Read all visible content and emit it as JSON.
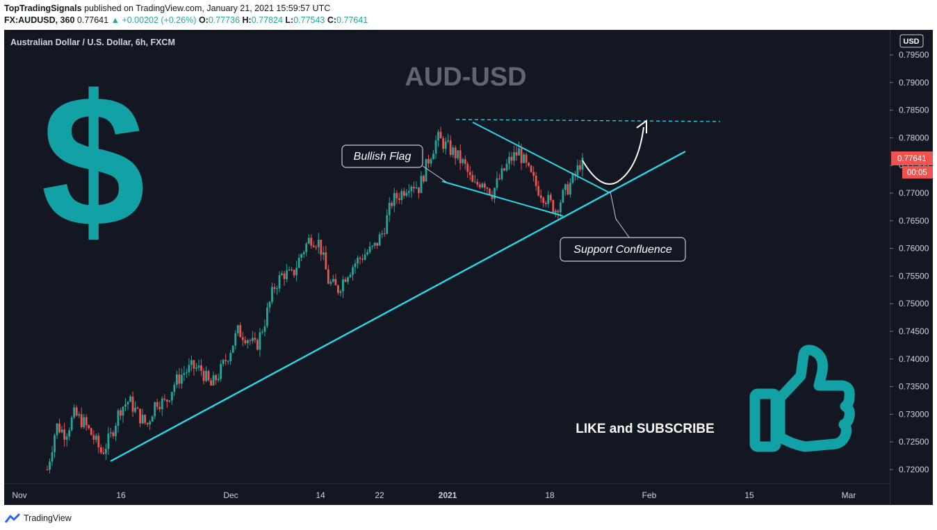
{
  "header": {
    "publisher": "TopTradingSignals",
    "published_text": "published on TradingView.com, January 21, 2021 15:59:57 UTC",
    "symbol": "FX:AUDUSD, 360",
    "last": "0.77641",
    "arrow": "▲",
    "change": "+0.00202 (+0.26%)",
    "o_label": "O:",
    "o_value": "0.77736",
    "h_label": "H:",
    "h_value": "0.77824",
    "l_label": "L:",
    "l_value": "0.77543",
    "c_label": "C:",
    "c_value": "0.77641"
  },
  "chart_title": "Australian Dollar / U.S. Dollar, 6h, FXCM",
  "watermark": "AUD-USD",
  "currency_badge": "USD",
  "price_label": "0.77641",
  "countdown_label": "00:05",
  "annotations": {
    "bullish_flag": "Bullish Flag",
    "support_confluence": "Support Confluence",
    "like_subscribe": "LIKE and SUBSCRIBE",
    "dollar_symbol": "$"
  },
  "footer": {
    "brand": "TradingView"
  },
  "colors": {
    "background": "#131722",
    "up": "#26a69a",
    "down": "#ef5350",
    "trendline": "#27d9eb",
    "icon_teal": "#12a2a6",
    "watermark": "#5f6573"
  },
  "icons": [
    "dollar-icon",
    "thumbs-up-icon",
    "tradingview-logo-icon"
  ],
  "chart_data": {
    "type": "candlestick",
    "title": "Australian Dollar / U.S. Dollar, 6h, FXCM",
    "timeframe": "6h",
    "y_axis": {
      "range": [
        0.7175,
        0.798
      ],
      "ticks": [
        "0.79500",
        "0.79000",
        "0.78500",
        "0.78000",
        "0.77500",
        "0.77000",
        "0.76500",
        "0.76000",
        "0.75500",
        "0.75000",
        "0.74500",
        "0.74000",
        "0.73500",
        "0.73000",
        "0.72500",
        "0.72000"
      ]
    },
    "x_axis": {
      "ticks": [
        "Nov",
        "16",
        "Dec",
        "14",
        "22",
        "2021",
        "18",
        "Feb",
        "15",
        "Mar"
      ]
    },
    "close_path": [
      [
        "Nov 05",
        0.72
      ],
      [
        "Nov 06",
        0.728
      ],
      [
        "Nov 08",
        0.7265
      ],
      [
        "Nov 09",
        0.73
      ],
      [
        "Nov 11",
        0.7285
      ],
      [
        "Nov 13",
        0.726
      ],
      [
        "Nov 15",
        0.723
      ],
      [
        "Nov 16",
        0.726
      ],
      [
        "Nov 18",
        0.731
      ],
      [
        "Nov 19",
        0.7325
      ],
      [
        "Nov 21",
        0.73
      ],
      [
        "Nov 23",
        0.728
      ],
      [
        "Nov 25",
        0.7325
      ],
      [
        "Nov 27",
        0.732
      ],
      [
        "Nov 29",
        0.7355
      ],
      [
        "Dec 01",
        0.7375
      ],
      [
        "Dec 02",
        0.7385
      ],
      [
        "Dec 04",
        0.738
      ],
      [
        "Dec 05",
        0.735
      ],
      [
        "Dec 07",
        0.7375
      ],
      [
        "Dec 08",
        0.741
      ],
      [
        "Dec 09",
        0.745
      ],
      [
        "Dec 11",
        0.744
      ],
      [
        "Dec 12",
        0.742
      ],
      [
        "Dec 13",
        0.747
      ],
      [
        "Dec 14",
        0.753
      ],
      [
        "Dec 15",
        0.7555
      ],
      [
        "Dec 16",
        0.755
      ],
      [
        "Dec 17",
        0.759
      ],
      [
        "Dec 18",
        0.762
      ],
      [
        "Dec 19",
        0.761
      ],
      [
        "Dec 21",
        0.754
      ],
      [
        "Dec 22",
        0.7525
      ],
      [
        "Dec 23",
        0.7555
      ],
      [
        "Dec 24",
        0.7575
      ],
      [
        "Dec 26",
        0.759
      ],
      [
        "Dec 28",
        0.76
      ],
      [
        "Dec 30",
        0.763
      ],
      [
        "Dec 31",
        0.7685
      ],
      [
        "Jan 01",
        0.77
      ],
      [
        "Jan 02",
        0.772
      ],
      [
        "Jan 03",
        0.771
      ],
      [
        "Jan 04",
        0.776
      ],
      [
        "Jan 05",
        0.78
      ],
      [
        "Jan 06",
        0.7785
      ],
      [
        "Jan 07",
        0.777
      ],
      [
        "Jan 08",
        0.775
      ],
      [
        "Jan 09",
        0.771
      ],
      [
        "Jan 10",
        0.7725
      ],
      [
        "Jan 11",
        0.77
      ],
      [
        "Jan 12",
        0.773
      ],
      [
        "Jan 13",
        0.776
      ],
      [
        "Jan 14",
        0.7775
      ],
      [
        "Jan 15",
        0.774
      ],
      [
        "Jan 16",
        0.771
      ],
      [
        "Jan 17",
        0.769
      ],
      [
        "Jan 18",
        0.767
      ],
      [
        "Jan 19",
        0.77
      ],
      [
        "Jan 20",
        0.7725
      ],
      [
        "Jan 21",
        0.7764
      ]
    ],
    "last_close": 0.77641,
    "resistance_level": 0.7835
  }
}
